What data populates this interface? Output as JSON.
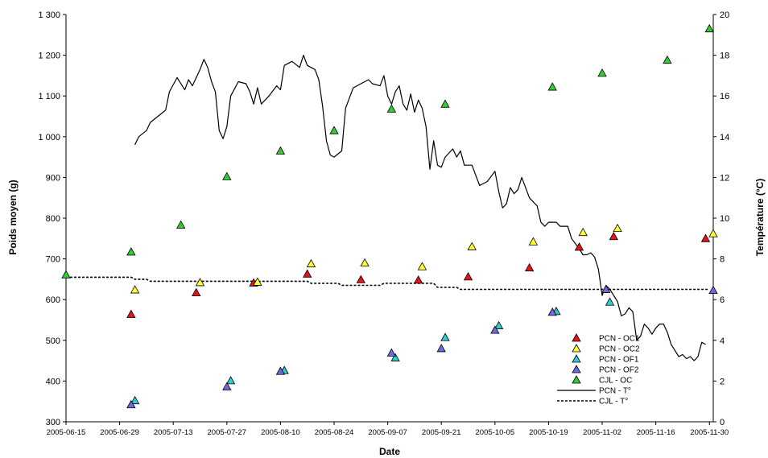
{
  "chart_data": {
    "type": "scatter",
    "xlabel": "Date",
    "ylabel_left": "Poids moyen (g)",
    "ylabel_right": "Température (°C)",
    "x_range": [
      "2005-06-15",
      "2005-12-01"
    ],
    "y_left_range": [
      300,
      1300
    ],
    "y_right_range": [
      0,
      20
    ],
    "x_ticks": [
      "2005-06-15",
      "2005-06-29",
      "2005-07-13",
      "2005-07-27",
      "2005-08-10",
      "2005-08-24",
      "2005-09-07",
      "2005-09-21",
      "2005-10-05",
      "2005-10-19",
      "2005-11-02",
      "2005-11-16",
      "2005-11-30"
    ],
    "y_left_ticks": [
      "300",
      "400",
      "500",
      "600",
      "700",
      "800",
      "900",
      "1 000",
      "1 100",
      "1 200",
      "1 300"
    ],
    "y_left_tick_values": [
      300,
      400,
      500,
      600,
      700,
      800,
      900,
      1000,
      1100,
      1200,
      1300
    ],
    "y_right_ticks": [
      "0",
      "2",
      "4",
      "6",
      "8",
      "10",
      "12",
      "14",
      "16",
      "18",
      "20"
    ],
    "y_right_tick_values": [
      0,
      2,
      4,
      6,
      8,
      10,
      12,
      14,
      16,
      18,
      20
    ],
    "legend_position": "bottom-right",
    "grid": false,
    "series": [
      {
        "name": "PCN - OC1",
        "kind": "marker",
        "color": "#e3141b",
        "axis": "left",
        "points": [
          [
            "2005-07-02",
            564
          ],
          [
            "2005-07-19",
            617
          ],
          [
            "2005-08-03",
            641
          ],
          [
            "2005-08-17",
            663
          ],
          [
            "2005-08-31",
            649
          ],
          [
            "2005-09-15",
            648
          ],
          [
            "2005-09-28",
            656
          ],
          [
            "2005-10-14",
            678
          ],
          [
            "2005-10-27",
            729
          ],
          [
            "2005-11-05",
            755
          ],
          [
            "2005-11-29",
            750
          ]
        ]
      },
      {
        "name": "PCN - OC2",
        "kind": "marker",
        "color": "#ffff33",
        "axis": "left",
        "points": [
          [
            "2005-07-03",
            624
          ],
          [
            "2005-07-20",
            642
          ],
          [
            "2005-08-04",
            643
          ],
          [
            "2005-08-18",
            688
          ],
          [
            "2005-09-01",
            690
          ],
          [
            "2005-09-16",
            681
          ],
          [
            "2005-09-29",
            730
          ],
          [
            "2005-10-15",
            742
          ],
          [
            "2005-10-28",
            765
          ],
          [
            "2005-11-06",
            775
          ],
          [
            "2005-12-01",
            762
          ]
        ]
      },
      {
        "name": "PCN - OF1",
        "kind": "marker",
        "color": "#33cccc",
        "axis": "left",
        "points": [
          [
            "2005-07-03",
            352
          ],
          [
            "2005-07-28",
            401
          ],
          [
            "2005-08-11",
            426
          ],
          [
            "2005-09-09",
            457
          ],
          [
            "2005-09-22",
            507
          ],
          [
            "2005-10-06",
            536
          ],
          [
            "2005-10-21",
            571
          ],
          [
            "2005-11-04",
            594
          ]
        ]
      },
      {
        "name": "PCN - OF2",
        "kind": "marker",
        "color": "#6b6bdb",
        "axis": "left",
        "points": [
          [
            "2005-07-02",
            342
          ],
          [
            "2005-07-27",
            386
          ],
          [
            "2005-08-10",
            424
          ],
          [
            "2005-09-08",
            469
          ],
          [
            "2005-09-21",
            480
          ],
          [
            "2005-10-05",
            525
          ],
          [
            "2005-10-20",
            569
          ],
          [
            "2005-11-03",
            625
          ],
          [
            "2005-12-01",
            623
          ]
        ]
      },
      {
        "name": "CJL - OC",
        "kind": "marker",
        "color": "#33cc33",
        "axis": "left",
        "points": [
          [
            "2005-06-15",
            661
          ],
          [
            "2005-07-02",
            717
          ],
          [
            "2005-07-15",
            783
          ],
          [
            "2005-07-27",
            902
          ],
          [
            "2005-08-10",
            965
          ],
          [
            "2005-08-24",
            1015
          ],
          [
            "2005-09-08",
            1068
          ],
          [
            "2005-09-22",
            1080
          ],
          [
            "2005-10-20",
            1122
          ],
          [
            "2005-11-02",
            1156
          ],
          [
            "2005-11-19",
            1188
          ],
          [
            "2005-11-30",
            1265
          ]
        ]
      },
      {
        "name": "PCN - T°",
        "kind": "line",
        "style": "solid",
        "color": "#000000",
        "axis": "right",
        "points": [
          [
            "2005-07-03",
            13.6
          ],
          [
            "2005-07-04",
            14.0
          ],
          [
            "2005-07-06",
            14.3
          ],
          [
            "2005-07-07",
            14.7
          ],
          [
            "2005-07-09",
            15.0
          ],
          [
            "2005-07-11",
            15.3
          ],
          [
            "2005-07-12",
            16.2
          ],
          [
            "2005-07-14",
            16.9
          ],
          [
            "2005-07-16",
            16.3
          ],
          [
            "2005-07-17",
            16.8
          ],
          [
            "2005-07-18",
            16.5
          ],
          [
            "2005-07-20",
            17.3
          ],
          [
            "2005-07-21",
            17.8
          ],
          [
            "2005-07-22",
            17.4
          ],
          [
            "2005-07-23",
            16.7
          ],
          [
            "2005-07-24",
            16.2
          ],
          [
            "2005-07-25",
            14.3
          ],
          [
            "2005-07-26",
            13.9
          ],
          [
            "2005-07-27",
            14.5
          ],
          [
            "2005-07-28",
            16.0
          ],
          [
            "2005-07-30",
            16.7
          ],
          [
            "2005-08-01",
            16.6
          ],
          [
            "2005-08-02",
            16.2
          ],
          [
            "2005-08-03",
            15.6
          ],
          [
            "2005-08-04",
            16.4
          ],
          [
            "2005-08-05",
            15.6
          ],
          [
            "2005-08-07",
            16.0
          ],
          [
            "2005-08-09",
            16.5
          ],
          [
            "2005-08-10",
            16.3
          ],
          [
            "2005-08-11",
            17.5
          ],
          [
            "2005-08-13",
            17.7
          ],
          [
            "2005-08-15",
            17.4
          ],
          [
            "2005-08-16",
            18.0
          ],
          [
            "2005-08-17",
            17.5
          ],
          [
            "2005-08-19",
            17.3
          ],
          [
            "2005-08-20",
            16.8
          ],
          [
            "2005-08-21",
            15.5
          ],
          [
            "2005-08-22",
            13.8
          ],
          [
            "2005-08-23",
            13.1
          ],
          [
            "2005-08-24",
            13.0
          ],
          [
            "2005-08-26",
            13.3
          ],
          [
            "2005-08-27",
            15.4
          ],
          [
            "2005-08-29",
            16.4
          ],
          [
            "2005-08-31",
            16.6
          ],
          [
            "2005-09-02",
            16.8
          ],
          [
            "2005-09-03",
            16.6
          ],
          [
            "2005-09-05",
            16.5
          ],
          [
            "2005-09-06",
            17.0
          ],
          [
            "2005-09-07",
            16.0
          ],
          [
            "2005-09-08",
            15.6
          ],
          [
            "2005-09-09",
            16.2
          ],
          [
            "2005-09-10",
            16.5
          ],
          [
            "2005-09-11",
            15.6
          ],
          [
            "2005-09-12",
            15.3
          ],
          [
            "2005-09-13",
            16.1
          ],
          [
            "2005-09-14",
            15.2
          ],
          [
            "2005-09-15",
            15.8
          ],
          [
            "2005-09-16",
            15.4
          ],
          [
            "2005-09-17",
            14.5
          ],
          [
            "2005-09-18",
            12.4
          ],
          [
            "2005-09-19",
            13.8
          ],
          [
            "2005-09-20",
            12.6
          ],
          [
            "2005-09-21",
            12.5
          ],
          [
            "2005-09-22",
            13.0
          ],
          [
            "2005-09-24",
            13.4
          ],
          [
            "2005-09-25",
            13.0
          ],
          [
            "2005-09-26",
            13.3
          ],
          [
            "2005-09-27",
            12.6
          ],
          [
            "2005-09-29",
            12.6
          ],
          [
            "2005-09-30",
            12.1
          ],
          [
            "2005-10-01",
            11.6
          ],
          [
            "2005-10-03",
            11.8
          ],
          [
            "2005-10-05",
            12.3
          ],
          [
            "2005-10-06",
            11.3
          ],
          [
            "2005-10-07",
            10.5
          ],
          [
            "2005-10-08",
            10.7
          ],
          [
            "2005-10-09",
            11.5
          ],
          [
            "2005-10-10",
            11.2
          ],
          [
            "2005-10-11",
            11.4
          ],
          [
            "2005-10-12",
            12.0
          ],
          [
            "2005-10-14",
            11.0
          ],
          [
            "2005-10-15",
            10.8
          ],
          [
            "2005-10-16",
            10.6
          ],
          [
            "2005-10-17",
            9.8
          ],
          [
            "2005-10-18",
            9.6
          ],
          [
            "2005-10-19",
            9.8
          ],
          [
            "2005-10-21",
            9.8
          ],
          [
            "2005-10-22",
            9.6
          ],
          [
            "2005-10-24",
            9.6
          ],
          [
            "2005-10-25",
            9.0
          ],
          [
            "2005-10-27",
            8.5
          ],
          [
            "2005-10-28",
            8.2
          ],
          [
            "2005-10-29",
            8.2
          ],
          [
            "2005-10-30",
            8.3
          ],
          [
            "2005-10-31",
            8.1
          ],
          [
            "2005-11-01",
            7.5
          ],
          [
            "2005-11-02",
            6.2
          ],
          [
            "2005-11-03",
            6.7
          ],
          [
            "2005-11-04",
            6.5
          ],
          [
            "2005-11-05",
            6.2
          ],
          [
            "2005-11-06",
            5.9
          ],
          [
            "2005-11-07",
            5.2
          ],
          [
            "2005-11-08",
            5.3
          ],
          [
            "2005-11-09",
            5.6
          ],
          [
            "2005-11-10",
            5.4
          ],
          [
            "2005-11-11",
            4.0
          ],
          [
            "2005-11-12",
            4.2
          ],
          [
            "2005-11-13",
            4.8
          ],
          [
            "2005-11-14",
            4.6
          ],
          [
            "2005-11-15",
            4.3
          ],
          [
            "2005-11-16",
            4.6
          ],
          [
            "2005-11-17",
            4.8
          ],
          [
            "2005-11-18",
            4.8
          ],
          [
            "2005-11-19",
            4.4
          ],
          [
            "2005-11-20",
            3.8
          ],
          [
            "2005-11-21",
            3.5
          ],
          [
            "2005-11-22",
            3.2
          ],
          [
            "2005-11-23",
            3.3
          ],
          [
            "2005-11-24",
            3.1
          ],
          [
            "2005-11-25",
            3.2
          ],
          [
            "2005-11-26",
            3.0
          ],
          [
            "2005-11-27",
            3.2
          ],
          [
            "2005-11-28",
            3.9
          ],
          [
            "2005-11-29",
            3.8
          ]
        ]
      },
      {
        "name": "CJL - T°",
        "kind": "line",
        "style": "dashed",
        "color": "#000000",
        "axis": "right",
        "points": [
          [
            "2005-06-15",
            7.1
          ],
          [
            "2005-07-02",
            7.1
          ],
          [
            "2005-07-03",
            7.0
          ],
          [
            "2005-07-06",
            7.0
          ],
          [
            "2005-07-07",
            6.9
          ],
          [
            "2005-08-17",
            6.9
          ],
          [
            "2005-08-18",
            6.8
          ],
          [
            "2005-08-25",
            6.8
          ],
          [
            "2005-08-26",
            6.7
          ],
          [
            "2005-09-05",
            6.7
          ],
          [
            "2005-09-06",
            6.8
          ],
          [
            "2005-09-19",
            6.8
          ],
          [
            "2005-09-20",
            6.6
          ],
          [
            "2005-09-25",
            6.6
          ],
          [
            "2005-09-26",
            6.5
          ],
          [
            "2005-11-30",
            6.5
          ]
        ]
      }
    ]
  }
}
